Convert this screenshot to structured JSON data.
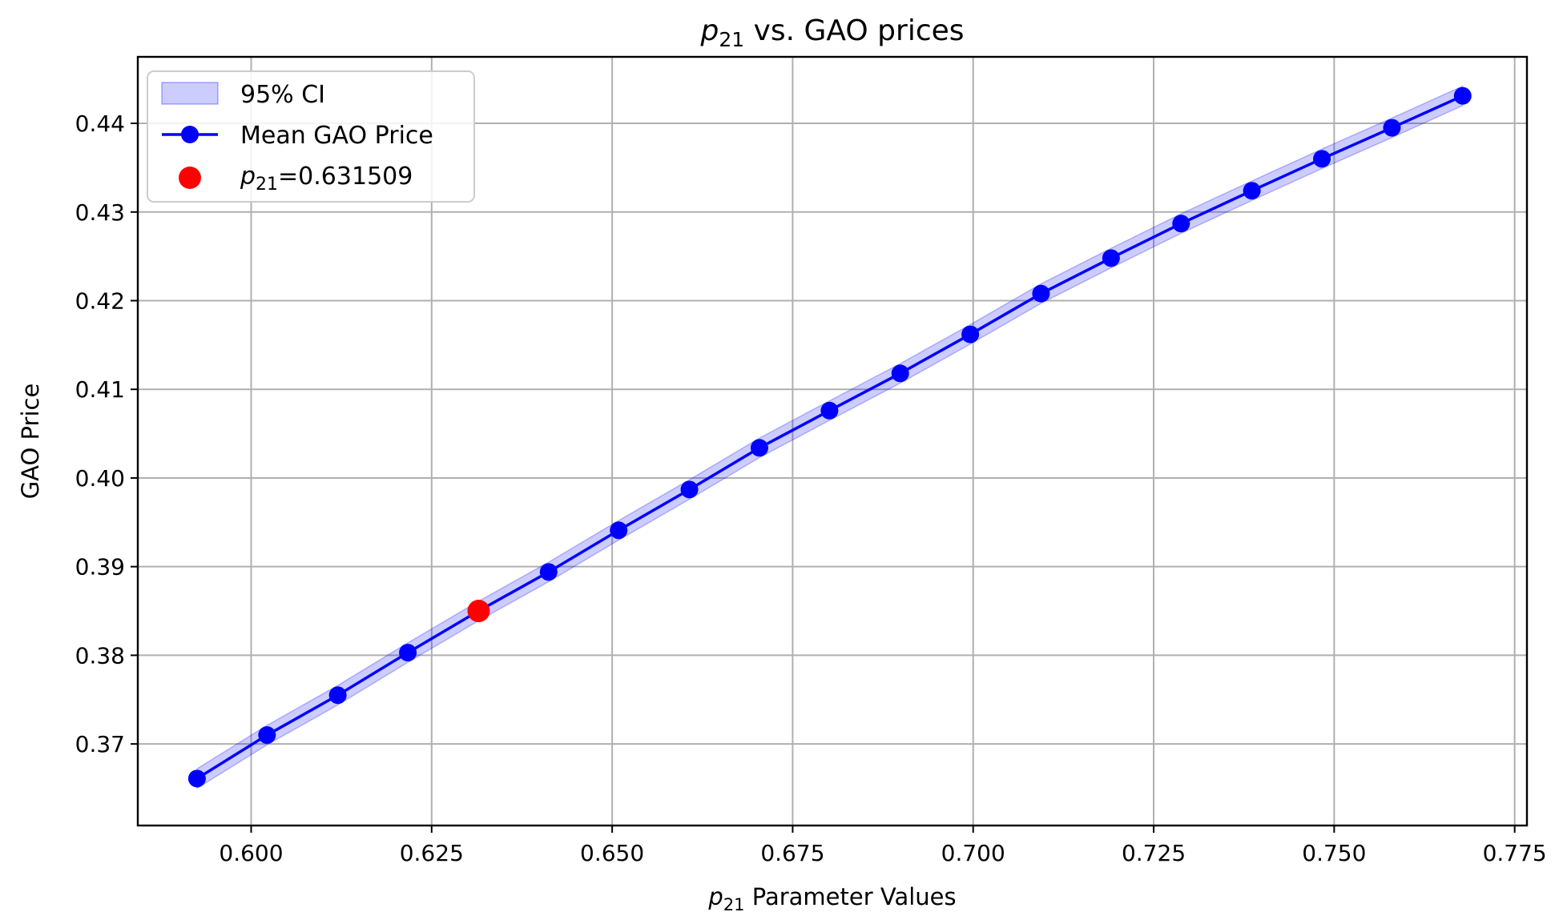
{
  "chart_data": {
    "type": "line",
    "title": {
      "var": "p",
      "sub": "21",
      "rest": " vs. GAO prices"
    },
    "xlabel": {
      "var": "p",
      "sub": "21",
      "rest": " Parameter Values"
    },
    "ylabel": "GAO Price",
    "xlim": [
      0.5843,
      0.7767
    ],
    "ylim": [
      0.3608,
      0.4475
    ],
    "x_ticks": [
      0.6,
      0.625,
      0.65,
      0.675,
      0.7,
      0.725,
      0.75,
      0.775
    ],
    "x_tick_labels": [
      "0.600",
      "0.625",
      "0.650",
      "0.675",
      "0.700",
      "0.725",
      "0.750",
      "0.775"
    ],
    "y_ticks": [
      0.37,
      0.38,
      0.39,
      0.4,
      0.41,
      0.42,
      0.43,
      0.44
    ],
    "y_tick_labels": [
      "0.37",
      "0.38",
      "0.39",
      "0.40",
      "0.41",
      "0.42",
      "0.43",
      "0.44"
    ],
    "grid": true,
    "legend_position": "top-left",
    "series": [
      {
        "name": "Mean GAO Price",
        "color": "#0000ff",
        "x": [
          0.5925,
          0.6022,
          0.612,
          0.6217,
          0.6315,
          0.6412,
          0.6509,
          0.6607,
          0.6704,
          0.6801,
          0.6899,
          0.6996,
          0.7094,
          0.7191,
          0.7288,
          0.7386,
          0.7483,
          0.758,
          0.7678
        ],
        "y": [
          0.3661,
          0.371,
          0.3755,
          0.3803,
          0.385,
          0.3894,
          0.3941,
          0.3987,
          0.4034,
          0.4076,
          0.4118,
          0.4162,
          0.4208,
          0.4248,
          0.4287,
          0.4324,
          0.436,
          0.4395,
          0.4431
        ]
      }
    ],
    "ci_band": {
      "name": "95% CI",
      "color": "#0000ff",
      "half_width": 0.0011
    },
    "highlight": {
      "label": {
        "var": "p",
        "sub": "21",
        "rest": "=0.631509"
      },
      "x": 0.631509,
      "y": 0.385,
      "color": "#ff0000"
    }
  }
}
